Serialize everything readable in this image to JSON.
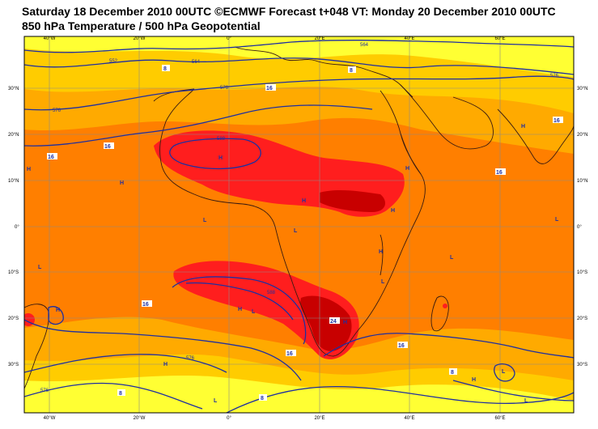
{
  "header": {
    "line1": "Saturday 18 December 2010 00UTC ©ECMWF Forecast t+048 VT: Monday 20 December 2010 00UTC",
    "line2": "850 hPa Temperature / 500 hPa Geopotential"
  },
  "map": {
    "lon_labels_top": [
      "40°W",
      "20°W",
      "0°",
      "20°E",
      "40°E",
      "60°E"
    ],
    "lon_labels_bottom": [
      "40°W",
      "20°W",
      "0°",
      "20°E",
      "40°E",
      "60°E"
    ],
    "lat_labels_left": [
      "30°N",
      "20°N",
      "10°N",
      "0°",
      "10°S",
      "20°S",
      "30°S"
    ],
    "lat_labels_right": [
      "30°N",
      "20°N",
      "10°N",
      "0°",
      "10°S",
      "20°S",
      "30°S"
    ],
    "contour_labels": [
      "552",
      "564",
      "576",
      "576",
      "588",
      "588",
      "576",
      "576",
      "576",
      "564"
    ],
    "temp_labels": [
      "8",
      "8",
      "16",
      "16",
      "16",
      "16",
      "16",
      "16",
      "16",
      "24",
      "16",
      "8",
      "8",
      "8"
    ],
    "pressure_marks": [
      "H",
      "H",
      "H",
      "H",
      "H",
      "H",
      "H",
      "H",
      "H",
      "H",
      "H",
      "H",
      "H",
      "L",
      "L",
      "L",
      "L",
      "L",
      "L",
      "L",
      "L",
      "L",
      "L"
    ],
    "colors": {
      "frame": "#000000",
      "yellow": "#ffff33",
      "gold": "#ffcc00",
      "orange_light": "#ffaa00",
      "orange": "#ff7f00",
      "red": "#ff1e1e",
      "darkred": "#c80000",
      "contour": "#1f2fa0",
      "coast": "#3a1b10",
      "grid": "#8a8a8a"
    }
  }
}
